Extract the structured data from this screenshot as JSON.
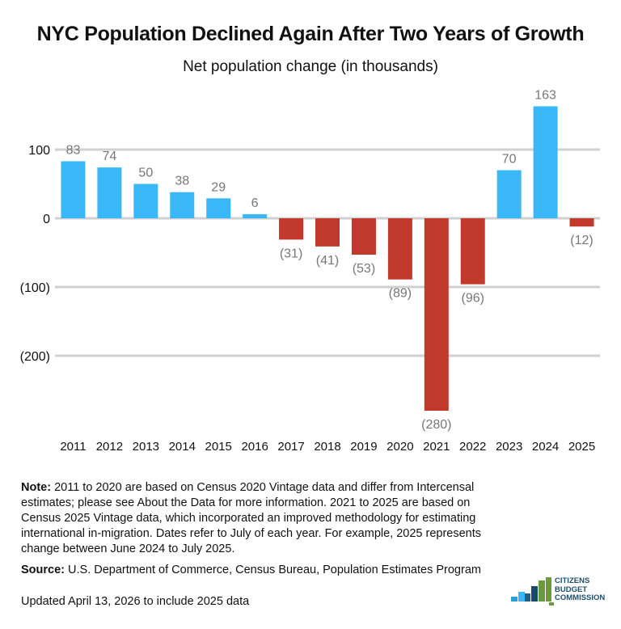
{
  "chart_data": {
    "type": "bar",
    "title": "NYC Population Declined Again After Two Years of Growth",
    "subtitle": "Net population change (in thousands)",
    "categories": [
      "2011",
      "2012",
      "2013",
      "2014",
      "2015",
      "2016",
      "2017",
      "2018",
      "2019",
      "2020",
      "2021",
      "2022",
      "2023",
      "2024",
      "2025"
    ],
    "values": [
      83,
      74,
      50,
      38,
      29,
      6,
      -31,
      -41,
      -53,
      -89,
      -280,
      -96,
      70,
      163,
      -12
    ],
    "data_labels": [
      "83",
      "74",
      "50",
      "38",
      "29",
      "6",
      "(31)",
      "(41)",
      "(53)",
      "(89)",
      "(280)",
      "(96)",
      "70",
      "163",
      "(12)"
    ],
    "yticks": [
      100,
      0,
      -100,
      -200
    ],
    "ytick_labels": [
      "100",
      "0",
      "(100)",
      "(200)"
    ],
    "ylim": [
      -300,
      175
    ],
    "grid": true,
    "colors": {
      "positive": "#3ab7f7",
      "negative": "#c0392b"
    }
  },
  "note": {
    "label": "Note:",
    "text": " 2011 to 2020 are based on Census 2020 Vintage data and differ from Intercensal estimates; please see About the Data for more information. 2021 to 2025 are based on Census 2025 Vintage data, which incorporated an improved methodology for estimating international in-migration. Dates refer to July of each year. For example, 2025 represents change between June 2024 to July 2025."
  },
  "source": {
    "label": "Source:",
    "text": " U.S. Department of Commerce, Census Bureau, Population Estimates Program"
  },
  "updated": "Updated April 13, 2026 to include 2025 data",
  "logo": {
    "lines": [
      "CITIZENS",
      "BUDGET",
      "COMMISSION"
    ]
  }
}
